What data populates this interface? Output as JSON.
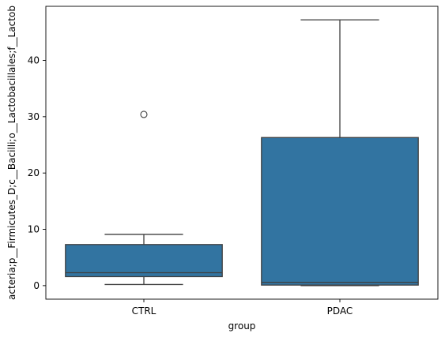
{
  "chart_data": {
    "type": "box",
    "xlabel": "group",
    "ylabel": "acteria;p__Firmicutes_D;c__Bacilli;o__Lactobacillales;f__Lactob",
    "categories": [
      "CTRL",
      "PDAC"
    ],
    "ylim": [
      -2.4,
      49.6
    ],
    "yticks": [
      0,
      10,
      20,
      30,
      40
    ],
    "grid": false,
    "box_color": "#3274a1",
    "line_color": "#3f3f3f",
    "boxes": [
      {
        "category": "CTRL",
        "whisker_low": 0.2,
        "q1": 1.6,
        "median": 2.3,
        "q3": 7.3,
        "whisker_high": 9.1,
        "outliers": [
          30.4
        ]
      },
      {
        "category": "PDAC",
        "whisker_low": 0.0,
        "q1": 0.1,
        "median": 0.6,
        "q3": 26.3,
        "whisker_high": 47.2,
        "outliers": []
      }
    ]
  }
}
